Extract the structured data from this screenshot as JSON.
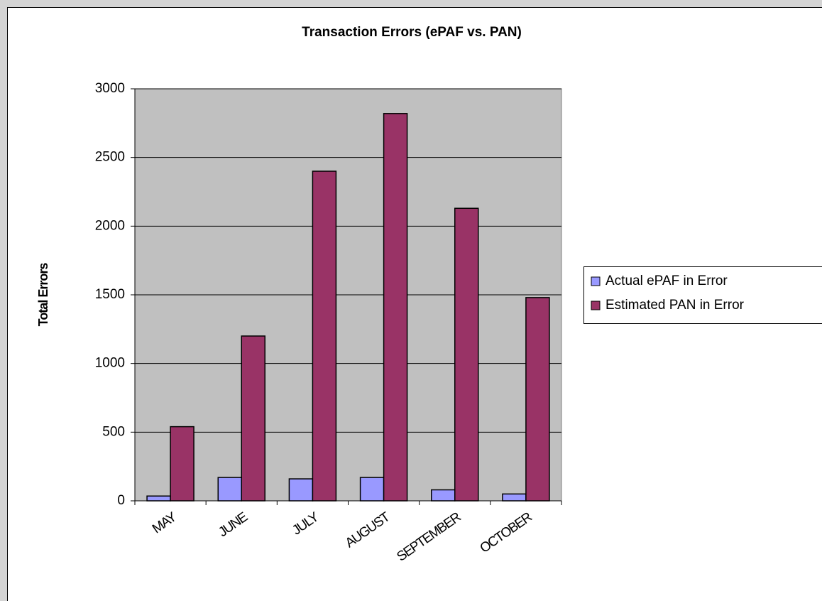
{
  "chart_data": {
    "type": "bar",
    "title": "Transaction Errors (ePAF vs. PAN)",
    "y_label": "Total Errors",
    "categories": [
      "MAY",
      "JUNE",
      "JULY",
      "AUGUST",
      "SEPTEMBER",
      "OCTOBER"
    ],
    "series": [
      {
        "name": "Actual ePAF in Error",
        "color": "#9999ff",
        "values": [
          35,
          170,
          160,
          170,
          80,
          50
        ]
      },
      {
        "name": "Estimated PAN in Error",
        "color": "#993366",
        "values": [
          540,
          1200,
          2400,
          2820,
          2130,
          1480
        ]
      }
    ],
    "ylim": [
      0,
      3000
    ],
    "yticks": [
      0,
      500,
      1000,
      1500,
      2000,
      2500,
      3000
    ],
    "grid": true,
    "legend": "right"
  }
}
